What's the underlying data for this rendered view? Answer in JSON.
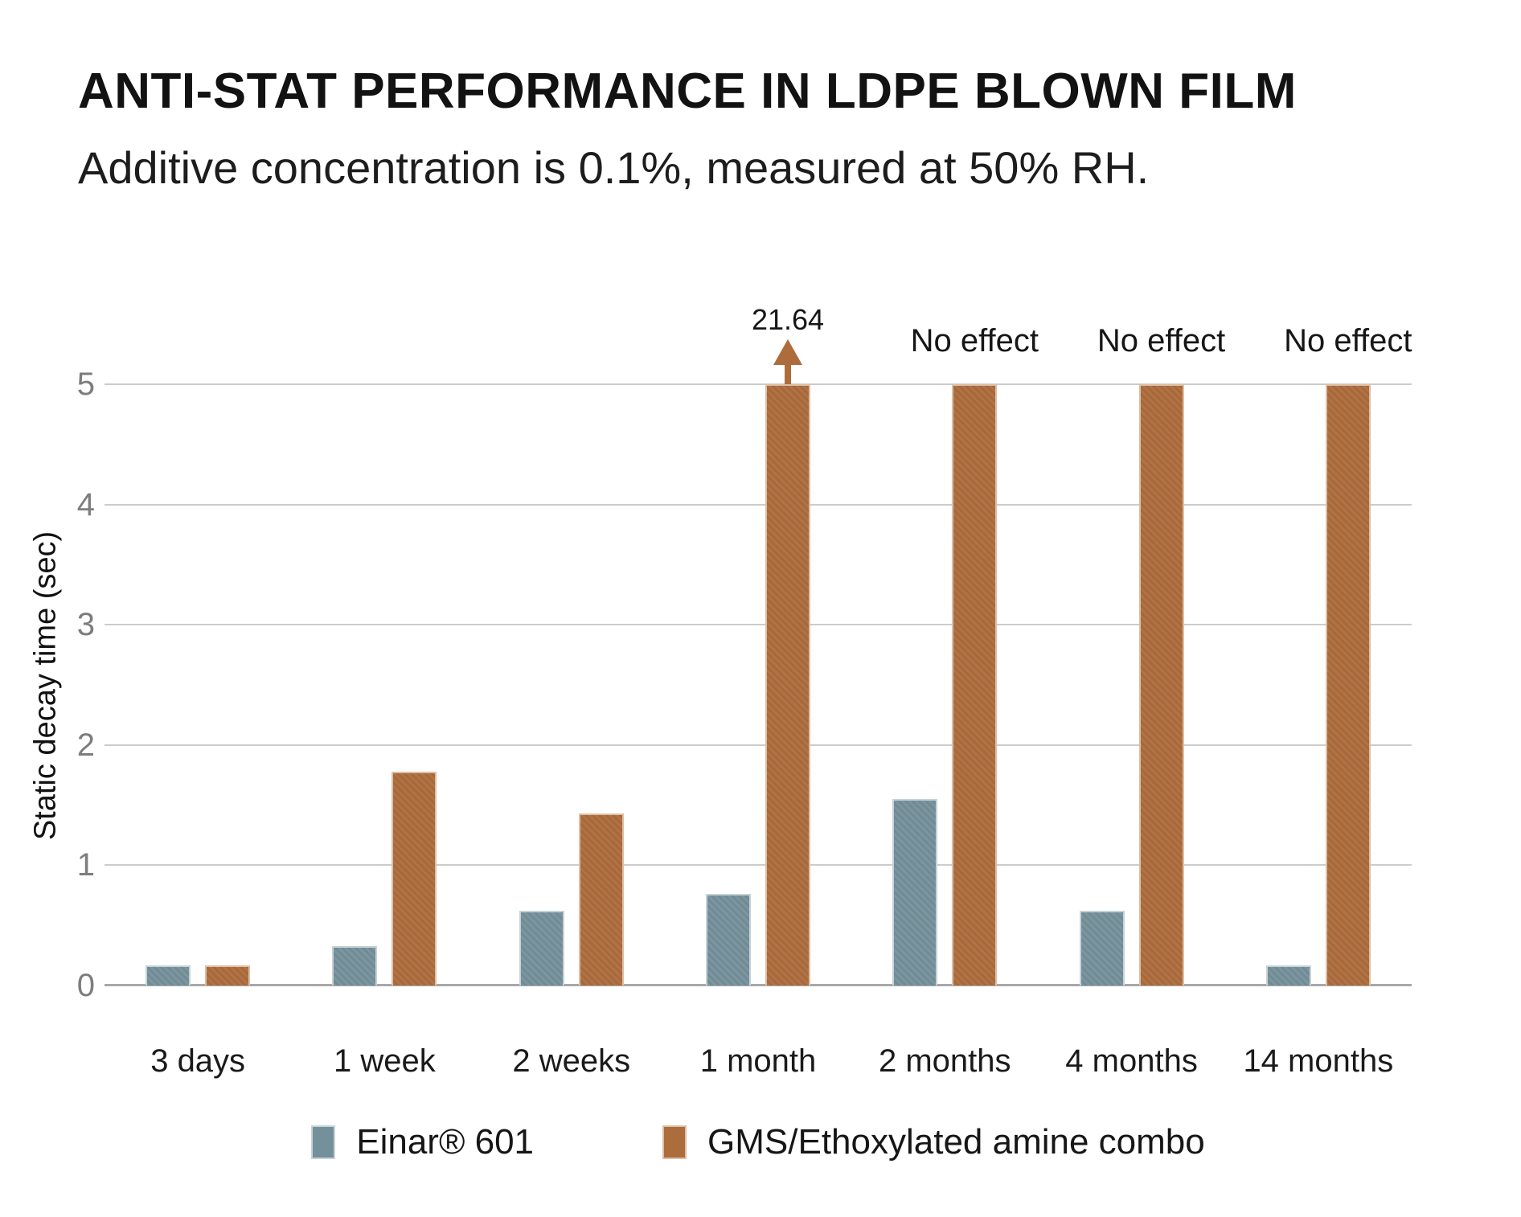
{
  "header": {
    "title": "ANTI-STAT PERFORMANCE IN LDPE BLOWN FILM",
    "subtitle": "Additive concentration is 0.1%, measured at 50% RH."
  },
  "chart_data": {
    "type": "bar",
    "title": "ANTI-STAT PERFORMANCE IN LDPE BLOWN FILM",
    "subtitle": "Additive concentration is 0.1%, measured at 50% RH.",
    "categories": [
      "3 days",
      "1 week",
      "2 weeks",
      "1 month",
      "2 months",
      "4 months",
      "14 months"
    ],
    "series": [
      {
        "name": "Einar® 601",
        "slug": "einar-601",
        "color": "#74909a",
        "border_color": "#c6d3d6",
        "values": [
          0.17,
          0.33,
          0.62,
          0.76,
          1.55,
          0.62,
          0.17
        ]
      },
      {
        "name": "GMS/Ethoxylated amine combo",
        "slug": "gms-ethoxylated-amine-combo",
        "color": "#ad6c3c",
        "border_color": "#ddbfa4",
        "values": [
          0.17,
          1.78,
          1.43,
          21.64,
          "No effect",
          "No effect",
          "No effect"
        ]
      }
    ],
    "annotations": [
      {
        "category_index": 3,
        "series_index": 1,
        "style": "arrow",
        "label": "21.64"
      },
      {
        "category_index": 4,
        "series_index": 1,
        "style": "text",
        "label": "No effect"
      },
      {
        "category_index": 5,
        "series_index": 1,
        "style": "text",
        "label": "No effect"
      },
      {
        "category_index": 6,
        "series_index": 1,
        "style": "text",
        "label": "No effect"
      }
    ],
    "xlabel": "",
    "ylabel": "Static decay time (sec)",
    "ylim": [
      0,
      5
    ],
    "yticks": [
      0,
      1,
      2,
      3,
      4,
      5
    ],
    "clip_max": 5,
    "grid": "horizontal",
    "legend_position": "bottom",
    "gridline_color": "#cccccc",
    "axis_line_color": "#a8a8a8",
    "tick_label_color": "#7d7d7d",
    "text_color": "#161616",
    "background_color": "#ffffff"
  }
}
